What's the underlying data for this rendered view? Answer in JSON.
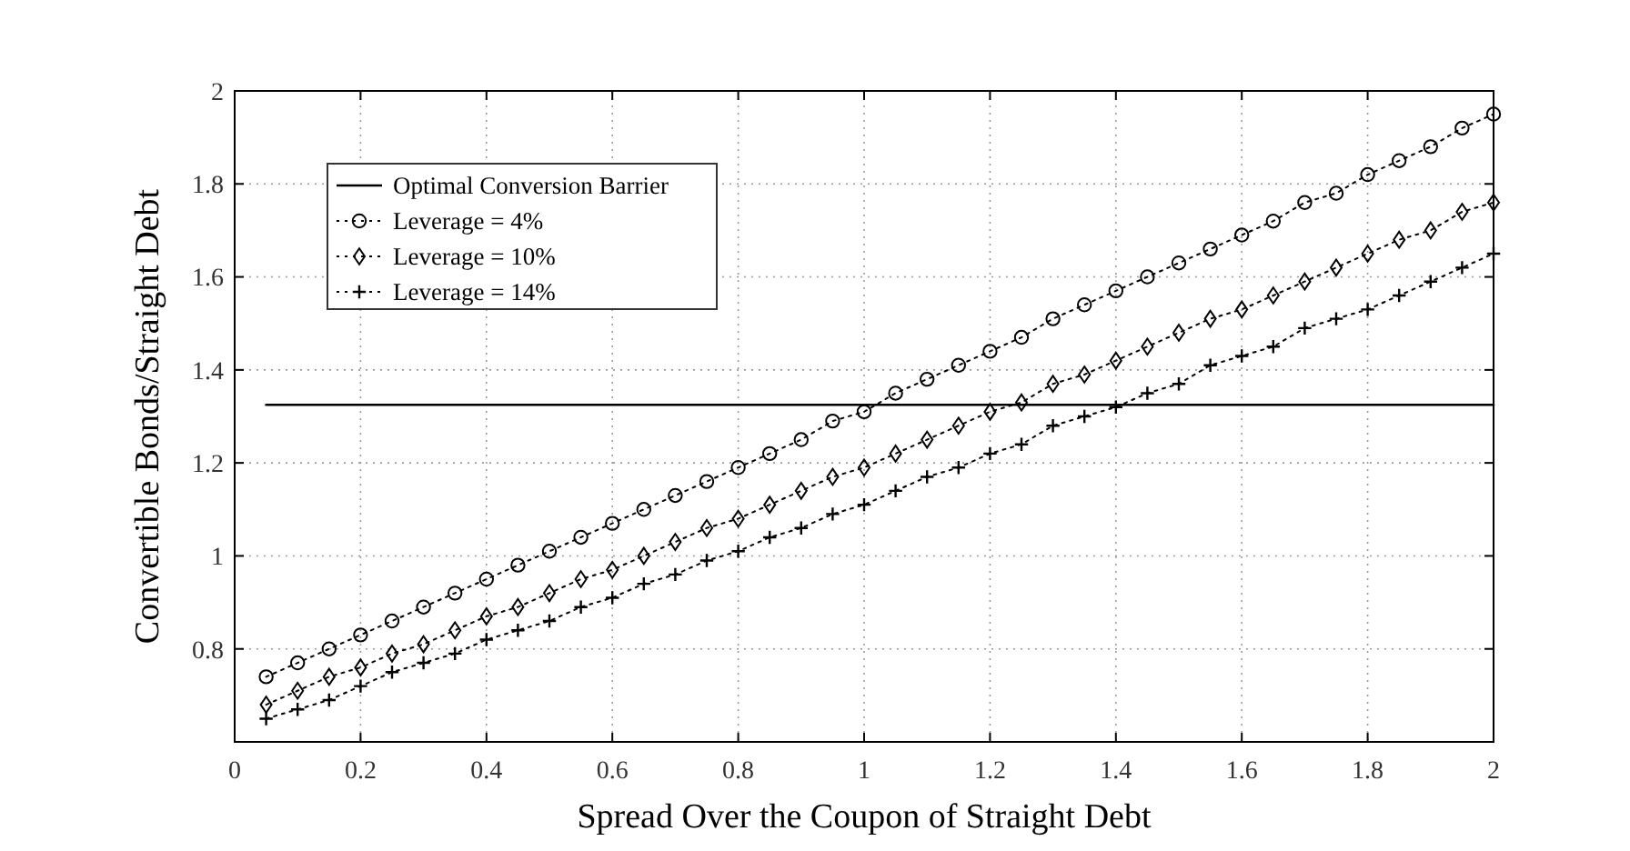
{
  "chart_data": {
    "type": "line",
    "xlabel": "Spread Over the Coupon of Straight Debt",
    "ylabel": "Convertible Bonds/Straight Debt",
    "xlim": [
      0,
      2
    ],
    "xticks": [
      0,
      0.2,
      0.4,
      0.6,
      0.8,
      1,
      1.2,
      1.4,
      1.6,
      1.8,
      2
    ],
    "ylim": [
      0.6,
      2
    ],
    "yticks": [
      0.8,
      1,
      1.2,
      1.4,
      1.6,
      1.8,
      2
    ],
    "grid": true,
    "legend": "top left",
    "x": [
      0.05,
      0.1,
      0.15,
      0.2,
      0.25,
      0.3,
      0.35,
      0.4,
      0.45,
      0.5,
      0.55,
      0.6,
      0.65,
      0.7,
      0.75,
      0.8,
      0.85,
      0.9,
      0.95,
      1,
      1.05,
      1.1,
      1.15,
      1.2,
      1.25,
      1.3,
      1.35,
      1.4,
      1.45,
      1.5,
      1.55,
      1.6,
      1.65,
      1.7,
      1.75,
      1.8,
      1.85,
      1.9,
      1.95,
      2
    ],
    "series": [
      {
        "name": "Optimal Conversion Barrier",
        "color": "#000000",
        "marker": "none",
        "line_style": "solid",
        "x": [
          0.05,
          2
        ],
        "values": [
          1.325,
          1.325
        ]
      },
      {
        "name": "Leverage = 4%",
        "color": "#000000",
        "marker": "circle",
        "line_style": "dotted",
        "values": [
          0.74,
          0.77,
          0.8,
          0.83,
          0.86,
          0.89,
          0.92,
          0.95,
          0.98,
          1.01,
          1.04,
          1.07,
          1.1,
          1.13,
          1.16,
          1.19,
          1.22,
          1.25,
          1.29,
          1.31,
          1.35,
          1.38,
          1.41,
          1.44,
          1.47,
          1.51,
          1.54,
          1.57,
          1.6,
          1.63,
          1.66,
          1.69,
          1.72,
          1.76,
          1.78,
          1.82,
          1.85,
          1.88,
          1.92,
          1.95
        ]
      },
      {
        "name": "Leverage = 10%",
        "color": "#000000",
        "marker": "diamond",
        "line_style": "dotted",
        "values": [
          0.68,
          0.71,
          0.74,
          0.76,
          0.79,
          0.81,
          0.84,
          0.87,
          0.89,
          0.92,
          0.95,
          0.97,
          1.0,
          1.03,
          1.06,
          1.08,
          1.11,
          1.14,
          1.17,
          1.19,
          1.22,
          1.25,
          1.28,
          1.31,
          1.33,
          1.37,
          1.39,
          1.42,
          1.45,
          1.48,
          1.51,
          1.53,
          1.56,
          1.59,
          1.62,
          1.65,
          1.68,
          1.7,
          1.74,
          1.76
        ]
      },
      {
        "name": "Leverage = 14%",
        "color": "#000000",
        "marker": "cross",
        "line_style": "dotted",
        "values": [
          0.65,
          0.67,
          0.69,
          0.72,
          0.75,
          0.77,
          0.79,
          0.82,
          0.84,
          0.86,
          0.89,
          0.91,
          0.94,
          0.96,
          0.99,
          1.01,
          1.04,
          1.06,
          1.09,
          1.11,
          1.14,
          1.17,
          1.19,
          1.22,
          1.24,
          1.28,
          1.3,
          1.32,
          1.35,
          1.37,
          1.41,
          1.43,
          1.45,
          1.49,
          1.51,
          1.53,
          1.56,
          1.59,
          1.62,
          1.65
        ]
      }
    ]
  }
}
